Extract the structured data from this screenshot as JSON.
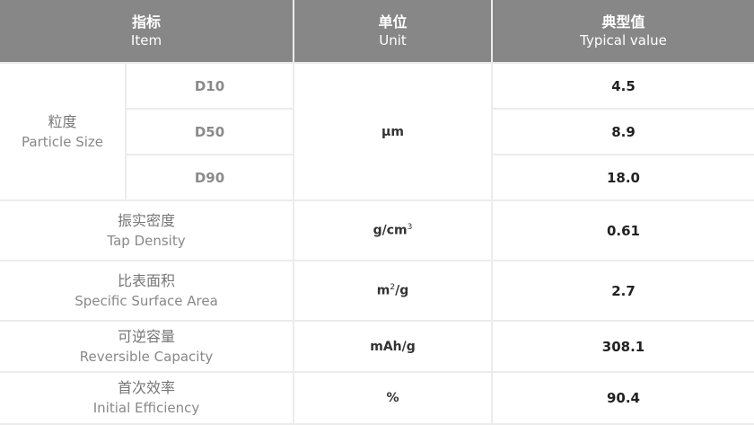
{
  "header": {
    "item": {
      "zh": "指标",
      "en": "Item"
    },
    "unit": {
      "zh": "单位",
      "en": "Unit"
    },
    "value": {
      "zh": "典型值",
      "en": "Typical value"
    }
  },
  "particle_size": {
    "zh": "粒度",
    "en": "Particle Size",
    "unit": "μm",
    "rows": [
      {
        "label": "D10",
        "value": "4.5"
      },
      {
        "label": "D50",
        "value": "8.9"
      },
      {
        "label": "D90",
        "value": "18.0"
      }
    ]
  },
  "rows": [
    {
      "zh": "振实密度",
      "en": "Tap Density",
      "unit_base": "g/cm",
      "unit_sup": "3",
      "value": "0.61"
    },
    {
      "zh": "比表面积",
      "en": "Specific Surface Area",
      "unit_base": "m",
      "unit_sup": "2",
      "unit_tail": "/g",
      "value": "2.7"
    },
    {
      "zh": "可逆容量",
      "en": "Reversible Capacity",
      "unit_base": "mAh/g",
      "value": "308.1"
    },
    {
      "zh": "首次效率",
      "en": "Initial Efficiency",
      "unit_base": "%",
      "value": "90.4"
    }
  ],
  "colors": {
    "header_bg": "#878787",
    "grid": "#ececec"
  }
}
